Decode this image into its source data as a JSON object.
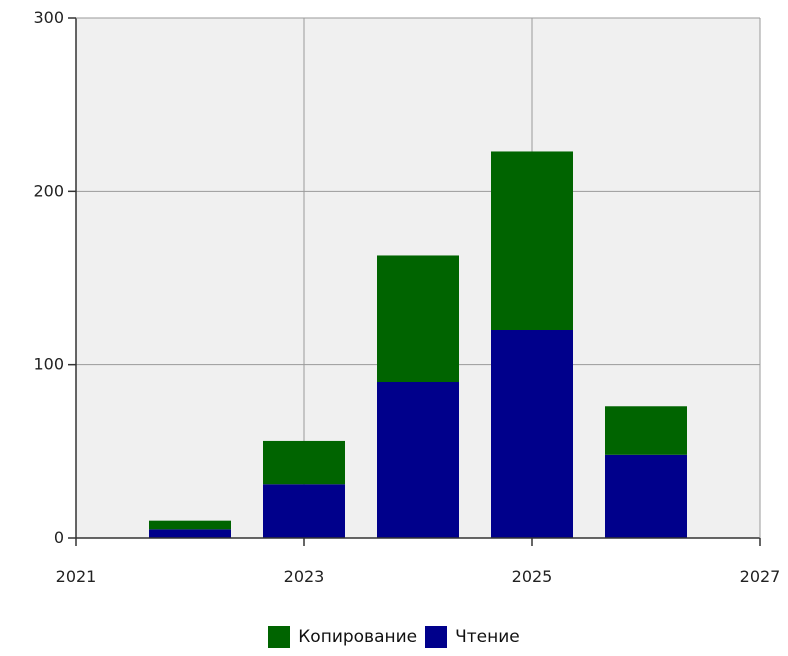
{
  "chart_data": {
    "type": "bar",
    "stacked": true,
    "categories": [
      2022,
      2023,
      2024,
      2025,
      2026
    ],
    "series": [
      {
        "name": "Чтение",
        "color": "#00008b",
        "values": [
          5,
          31,
          90,
          120,
          48
        ]
      },
      {
        "name": "Копирование",
        "color": "#006400",
        "values": [
          5,
          25,
          73,
          103,
          28
        ]
      }
    ],
    "xlim": [
      2021,
      2027
    ],
    "ylim": [
      0,
      300
    ],
    "xticks": [
      2021,
      2023,
      2025,
      2027
    ],
    "xtick_labels": [
      "2021",
      "2023",
      "2025",
      "2027"
    ],
    "yticks": [
      0,
      100,
      200,
      300
    ],
    "ytick_labels": [
      "0",
      "100",
      "200",
      "300"
    ],
    "grid": true,
    "plot_background": "#f0f0f0",
    "legend_position": "bottom-center",
    "legend": [
      {
        "label": "Копирование",
        "color": "#006400"
      },
      {
        "label": "Чтение",
        "color": "#00008b"
      }
    ]
  }
}
